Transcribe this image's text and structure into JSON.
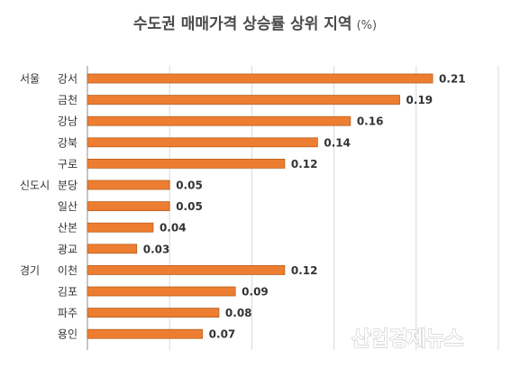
{
  "chart_data": {
    "type": "bar",
    "orientation": "horizontal",
    "title": "수도권 매매가격 상승률 상위 지역",
    "title_unit": "(%)",
    "groups": [
      {
        "label": "서울",
        "start_index": 0
      },
      {
        "label": "신도시",
        "start_index": 5
      },
      {
        "label": "경기",
        "start_index": 9
      }
    ],
    "categories": [
      "강서",
      "금천",
      "강남",
      "강북",
      "구로",
      "분당",
      "일산",
      "산본",
      "광교",
      "이천",
      "김포",
      "파주",
      "용인"
    ],
    "values": [
      0.21,
      0.19,
      0.16,
      0.14,
      0.12,
      0.05,
      0.05,
      0.04,
      0.03,
      0.12,
      0.09,
      0.08,
      0.07
    ],
    "value_labels": [
      "0.21",
      "0.19",
      "0.16",
      "0.14",
      "0.12",
      "0.05",
      "0.05",
      "0.04",
      "0.03",
      "0.12",
      "0.09",
      "0.08",
      "0.07"
    ],
    "xlim": [
      0,
      0.25
    ],
    "grid": true,
    "legend": "none",
    "bar_color": "#ED7D31",
    "bar_stroke_color": "#B8611F"
  },
  "watermark": "산업경제뉴스"
}
